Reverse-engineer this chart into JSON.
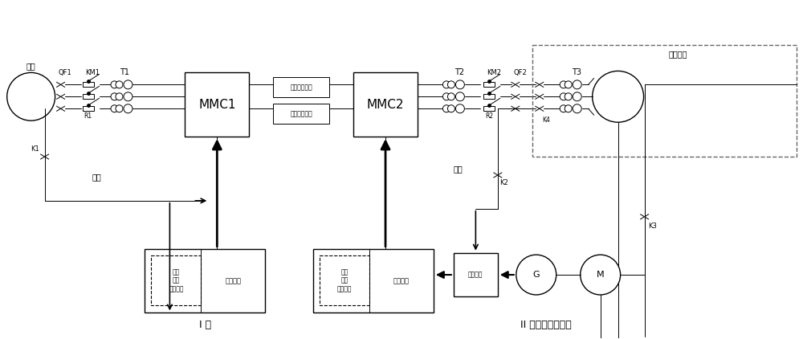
{
  "bg_color": "#ffffff",
  "labels": {
    "dianwang": "电网",
    "qf1": "QF1",
    "km1": "KM1",
    "t1": "T1",
    "mmc1": "MMC1",
    "mmc2": "MMC2",
    "xianlu1": "线路模拟装置",
    "xianlu2": "线路模拟装置",
    "km2": "KM2",
    "qf2": "QF2",
    "t2": "T2",
    "t3": "T3",
    "r1": "R1",
    "r2": "R2",
    "k1": "K1",
    "k2": "K2",
    "k3": "K3",
    "k4": "K4",
    "dianYuan1": "电源",
    "dianYuan2": "电源",
    "leng1": "冷却系统",
    "leng2": "冷却系统",
    "kongzhi1": "阀控\n极控\n控制系统",
    "kongzhi2": "阀控\n极控\n控制系统",
    "zhuanhuan": "转换开关",
    "G": "G",
    "M": "M",
    "I_duan": "I 端",
    "II_duan": "II 端（黑启动端）",
    "mnDianwang": "模拟电网"
  }
}
